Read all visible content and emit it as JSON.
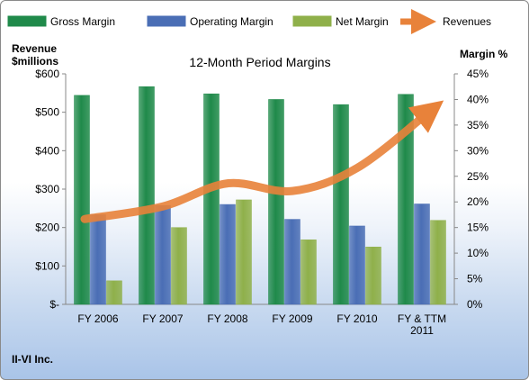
{
  "chart_data": {
    "type": "bar",
    "title": "12-Month Period Margins",
    "company": "II-VI Inc.",
    "left_axis_label_line1": "Revenue",
    "left_axis_label_line2": "$millions",
    "right_axis_label": "Margin %",
    "categories": [
      [
        "FY 2006"
      ],
      [
        "FY 2007"
      ],
      [
        "FY 2008"
      ],
      [
        "FY 2009"
      ],
      [
        "FY 2010"
      ],
      [
        "FY & TTM",
        "2011"
      ]
    ],
    "left_ticks": [
      "$-",
      "$100",
      "$200",
      "$300",
      "$400",
      "$500",
      "$600"
    ],
    "right_ticks": [
      "0%",
      "5%",
      "10%",
      "15%",
      "20%",
      "25%",
      "30%",
      "35%",
      "40%",
      "45%"
    ],
    "ylim_left": [
      0,
      600
    ],
    "ylim_right": [
      0,
      45
    ],
    "legend_position": "top",
    "series": [
      {
        "name": "Gross Margin",
        "kind": "bar",
        "axis": "right",
        "color": "#1f8a4a",
        "values": [
          40.8,
          42.5,
          41.1,
          40.0,
          39.0,
          41.0
        ]
      },
      {
        "name": "Operating Margin",
        "kind": "bar",
        "axis": "right",
        "color": "#4a6eb5",
        "values": [
          17.5,
          19.3,
          19.5,
          16.6,
          15.3,
          19.6
        ]
      },
      {
        "name": "Net Margin",
        "kind": "bar",
        "axis": "right",
        "color": "#8fb04a",
        "values": [
          4.6,
          15.0,
          20.4,
          12.6,
          11.2,
          16.4
        ]
      },
      {
        "name": "Revenues",
        "kind": "arrow-line",
        "axis": "left",
        "color": "#e8823a",
        "values": [
          222,
          255,
          315,
          295,
          355,
          505
        ]
      }
    ]
  }
}
